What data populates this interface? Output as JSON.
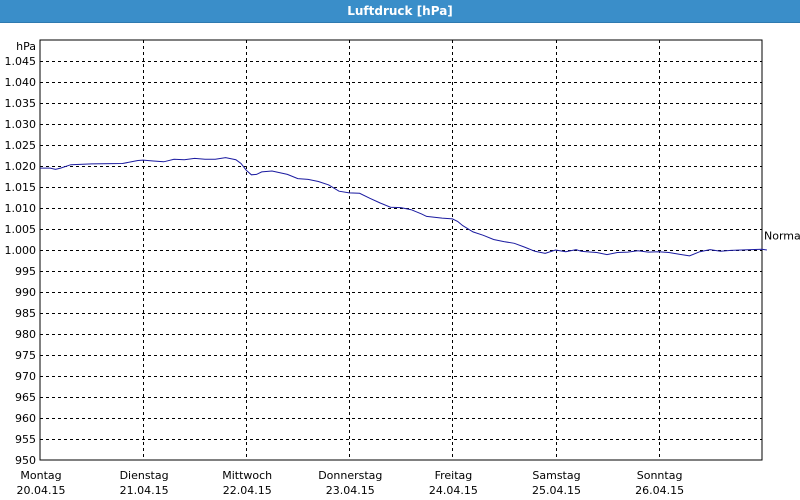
{
  "window": {
    "title": "Luftdruck [hPa]"
  },
  "chart_data": {
    "type": "line",
    "title": "Luftdruck [hPa]",
    "ylabel": "hPa",
    "ylim": [
      950,
      1050
    ],
    "y_ticks": [
      "1.045",
      "1.040",
      "1.035",
      "1.030",
      "1.025",
      "1.020",
      "1.015",
      "1.010",
      "1.005",
      "1.000",
      "995",
      "990",
      "985",
      "980",
      "975",
      "970",
      "965",
      "960",
      "955",
      "950"
    ],
    "x_days": [
      {
        "day": "Montag",
        "date": "20.04.15"
      },
      {
        "day": "Dienstag",
        "date": "21.04.15"
      },
      {
        "day": "Mittwoch",
        "date": "22.04.15"
      },
      {
        "day": "Donnerstag",
        "date": "23.04.15"
      },
      {
        "day": "Freitag",
        "date": "24.04.15"
      },
      {
        "day": "Samstag",
        "date": "25.04.15"
      },
      {
        "day": "Sonntag",
        "date": "26.04.15"
      }
    ],
    "reference_line": {
      "label": "Normal",
      "value": 1003.5
    },
    "grid": true,
    "line_color": "#1a1aa0",
    "series": [
      {
        "x": [
          0.0,
          0.1,
          0.15,
          0.2,
          0.3,
          0.5,
          0.8,
          0.95,
          1.0,
          1.1,
          1.2,
          1.3,
          1.4,
          1.5,
          1.6,
          1.7,
          1.8,
          1.9,
          1.95,
          2.0,
          2.05,
          2.1,
          2.15,
          2.25,
          2.4,
          2.5,
          2.6,
          2.7,
          2.8,
          2.9,
          3.0,
          3.1,
          3.2,
          3.3,
          3.4,
          3.5,
          3.6,
          3.7,
          3.75,
          3.9,
          4.0,
          4.05,
          4.1,
          4.2,
          4.3,
          4.4,
          4.5,
          4.6,
          4.7,
          4.8,
          4.9,
          5.0,
          5.1,
          5.2,
          5.25,
          5.3,
          5.4,
          5.5,
          5.6,
          5.7,
          5.8,
          5.9,
          6.0,
          6.1,
          6.2,
          6.3,
          6.4,
          6.5,
          6.6,
          6.7,
          6.8,
          6.9,
          7.0,
          7.05
        ],
        "y": [
          1019.5,
          1019.5,
          1019.2,
          1019.5,
          1020.3,
          1020.5,
          1020.6,
          1021.3,
          1021.4,
          1021.2,
          1021.0,
          1021.6,
          1021.5,
          1021.8,
          1021.6,
          1021.6,
          1022.0,
          1021.5,
          1020.6,
          1019.0,
          1017.9,
          1018.0,
          1018.6,
          1018.8,
          1018.0,
          1017.0,
          1016.8,
          1016.3,
          1015.5,
          1014.0,
          1013.6,
          1013.5,
          1012.3,
          1011.2,
          1010.2,
          1010.1,
          1009.6,
          1008.6,
          1008.0,
          1007.6,
          1007.4,
          1006.8,
          1005.8,
          1004.3,
          1003.5,
          1002.5,
          1002.0,
          1001.6,
          1000.7,
          999.7,
          999.2,
          1000.0,
          999.6,
          1000.1,
          999.7,
          999.6,
          999.4,
          998.9,
          999.4,
          999.5,
          999.8,
          999.5,
          999.6,
          999.4,
          999.0,
          998.6,
          999.6,
          1000.1,
          999.7,
          999.9,
          1000.0,
          1000.1,
          1000.2,
          1000.0
        ]
      }
    ]
  }
}
